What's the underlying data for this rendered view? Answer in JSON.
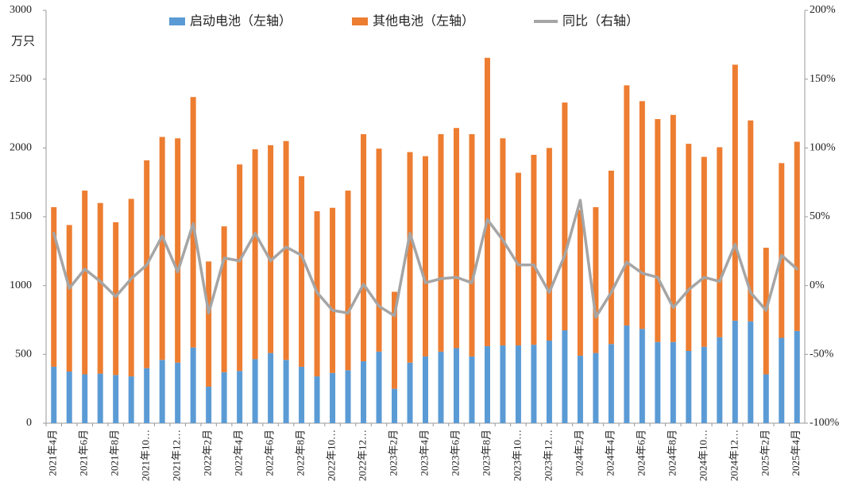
{
  "chart_data": {
    "type": "bar",
    "stacked": true,
    "y_unit": "万只",
    "categories": [
      "2021年4月",
      null,
      "2021年6月",
      null,
      "2021年8月",
      null,
      "2021年10…",
      null,
      "2021年12…",
      null,
      "2022年2月",
      null,
      "2022年4月",
      null,
      "2022年6月",
      null,
      "2022年8月",
      null,
      "2022年10…",
      null,
      "2022年12…",
      null,
      "2023年2月",
      null,
      "2023年4月",
      null,
      "2023年6月",
      null,
      "2023年8月",
      null,
      "2023年10…",
      null,
      "2023年12…",
      null,
      "2024年2月",
      null,
      "2024年4月",
      null,
      "2024年6月",
      null,
      "2024年8月",
      null,
      "2024年10…",
      null,
      "2024年12…",
      null,
      "2025年2月",
      null,
      "2025年4月"
    ],
    "series": [
      {
        "name": "启动电池（左轴）",
        "color": "#5b9bd5",
        "type": "bar",
        "values": [
          410,
          375,
          355,
          360,
          350,
          340,
          400,
          460,
          440,
          550,
          265,
          370,
          380,
          465,
          510,
          460,
          410,
          340,
          365,
          385,
          450,
          520,
          250,
          440,
          485,
          520,
          545,
          485,
          560,
          565,
          565,
          570,
          600,
          675,
          490,
          510,
          575,
          710,
          685,
          590,
          590,
          525,
          555,
          625,
          745,
          740,
          355,
          620,
          670
        ]
      },
      {
        "name": "其他电池（左轴）",
        "color": "#ed7d31",
        "type": "bar",
        "values": [
          1160,
          1065,
          1335,
          1240,
          1110,
          1290,
          1510,
          1620,
          1630,
          1820,
          910,
          1060,
          1500,
          1525,
          1510,
          1590,
          1385,
          1200,
          1200,
          1305,
          1650,
          1475,
          705,
          1530,
          1455,
          1580,
          1600,
          1615,
          2095,
          1505,
          1255,
          1380,
          1400,
          1655,
          1060,
          1060,
          1260,
          1745,
          1655,
          1620,
          1650,
          1505,
          1380,
          1380,
          1860,
          1460,
          920,
          1270,
          1375
        ]
      },
      {
        "name": "同比（右轴）",
        "color": "#a5a5a5",
        "type": "line",
        "axis": "y2",
        "values": [
          38,
          -2,
          12,
          3,
          -8,
          5,
          15,
          36,
          10,
          45,
          -20,
          20,
          18,
          38,
          18,
          28,
          22,
          -5,
          -18,
          -20,
          1,
          -15,
          -22,
          38,
          2,
          5,
          6,
          2,
          48,
          33,
          15,
          15,
          -5,
          22,
          62,
          -23,
          -5,
          17,
          9,
          6,
          -16,
          -3,
          6,
          3,
          30,
          -5,
          -18,
          22,
          12
        ]
      }
    ],
    "ylim": [
      0,
      3000
    ],
    "yticks": [
      0,
      500,
      1000,
      1500,
      2000,
      2500,
      3000
    ],
    "y2lim": [
      -100,
      200
    ],
    "y2ticks": [
      {
        "value": -100,
        "label": "-100%"
      },
      {
        "value": -50,
        "label": "-50%"
      },
      {
        "value": 0,
        "label": "0%"
      },
      {
        "value": 50,
        "label": "50%"
      },
      {
        "value": 100,
        "label": "100%"
      },
      {
        "value": 150,
        "label": "150%"
      },
      {
        "value": 200,
        "label": "200%"
      }
    ],
    "legend": "top",
    "grid": false
  }
}
